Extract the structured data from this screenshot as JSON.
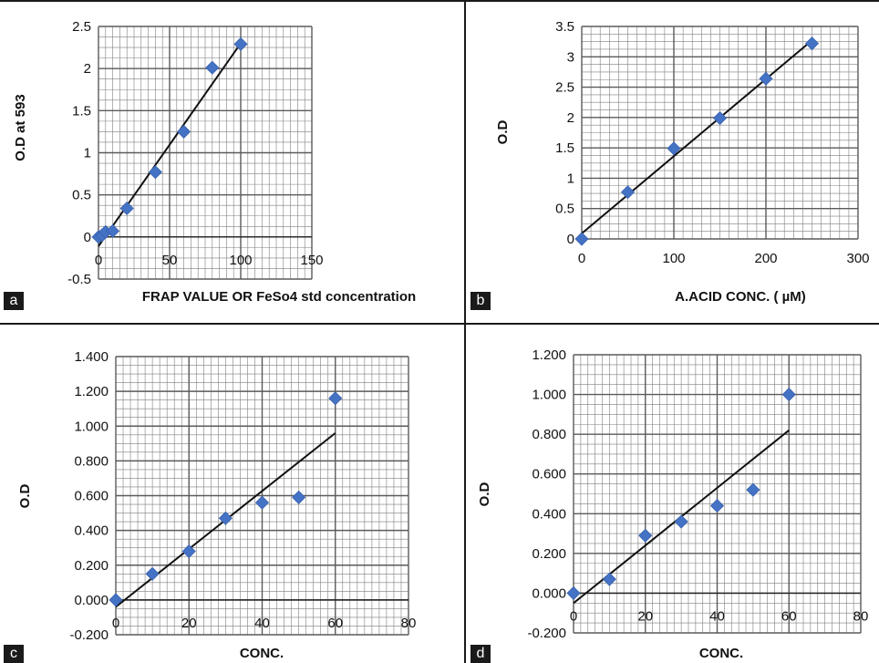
{
  "colors": {
    "marker": "#4472C4",
    "trendline": "#111111",
    "grid": "#7f7f7f",
    "panel_letter_bg": "#1a1a1a"
  },
  "chart_data": [
    {
      "type": "scatter",
      "panel": "a",
      "xlabel": "FRAP VALUE OR FeSo4 std concentration",
      "ylabel": "O.D at 593",
      "xlim": [
        0,
        150
      ],
      "ylim": [
        -0.5,
        2.5
      ],
      "xticks": [
        "0",
        "50",
        "100",
        "150"
      ],
      "yticks": [
        "2.5",
        "2",
        "1.5",
        "1",
        "0.5",
        "0",
        "-0.5"
      ],
      "grid": true,
      "x": [
        0,
        2.5,
        5,
        10,
        20,
        40,
        60,
        80,
        100
      ],
      "y": [
        0.0,
        0.02,
        0.06,
        0.07,
        0.34,
        0.77,
        1.25,
        2.01,
        2.29
      ],
      "trendline": {
        "x": [
          0,
          100
        ],
        "y": [
          -0.11,
          2.3
        ]
      }
    },
    {
      "type": "scatter",
      "panel": "b",
      "xlabel": "A.ACID CONC. ( µM)",
      "ylabel": "O.D",
      "xlim": [
        0,
        300
      ],
      "ylim": [
        0,
        3.5
      ],
      "xticks": [
        "0",
        "100",
        "200",
        "300"
      ],
      "yticks": [
        "3.5",
        "3",
        "2.5",
        "2",
        "1.5",
        "1",
        "0.5",
        "0"
      ],
      "grid": true,
      "x": [
        0,
        50,
        100,
        150,
        200,
        250
      ],
      "y": [
        0.0,
        0.77,
        1.49,
        1.99,
        2.64,
        3.22
      ],
      "trendline": {
        "x": [
          0,
          250
        ],
        "y": [
          0.09,
          3.27
        ]
      }
    },
    {
      "type": "scatter",
      "panel": "c",
      "xlabel": "CONC.",
      "ylabel": "O.D",
      "xlim": [
        0,
        80
      ],
      "ylim": [
        -0.2,
        1.4
      ],
      "xticks": [
        "0",
        "20",
        "40",
        "60",
        "80"
      ],
      "yticks": [
        "1.400",
        "1.200",
        "1.000",
        "0.800",
        "0.600",
        "0.400",
        "0.200",
        "0.000",
        "-0.200"
      ],
      "grid": true,
      "x": [
        0,
        10,
        20,
        30,
        40,
        50,
        60
      ],
      "y": [
        0.0,
        0.15,
        0.28,
        0.47,
        0.56,
        0.59,
        1.16
      ],
      "trendline": {
        "x": [
          0,
          60
        ],
        "y": [
          -0.04,
          0.96
        ]
      }
    },
    {
      "type": "scatter",
      "panel": "d",
      "xlabel": "CONC.",
      "ylabel": "O.D",
      "xlim": [
        0,
        80
      ],
      "ylim": [
        -0.2,
        1.2
      ],
      "xticks": [
        "0",
        "20",
        "40",
        "60",
        "80"
      ],
      "yticks": [
        "1.200",
        "1.000",
        "0.800",
        "0.600",
        "0.400",
        "0.200",
        "0.000",
        "-0.200"
      ],
      "grid": true,
      "x": [
        0,
        10,
        20,
        30,
        40,
        50,
        60
      ],
      "y": [
        0.0,
        0.07,
        0.29,
        0.36,
        0.44,
        0.52,
        1.0
      ],
      "trendline": {
        "x": [
          0,
          60
        ],
        "y": [
          -0.05,
          0.82
        ]
      }
    }
  ]
}
